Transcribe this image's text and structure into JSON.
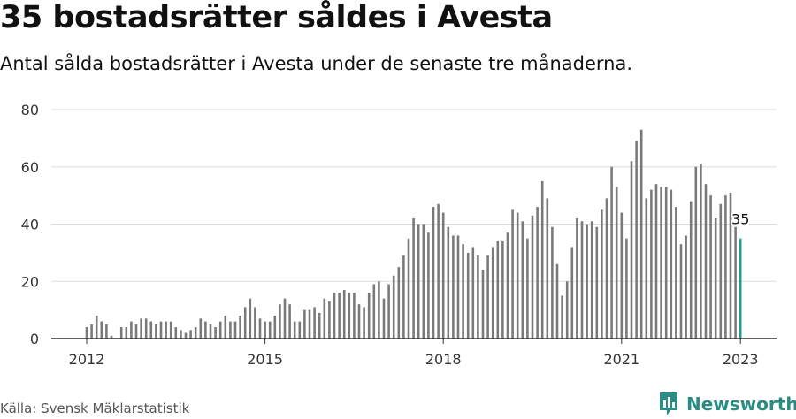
{
  "title": "35 bostadsrätter såldes i Avesta",
  "subtitle": "Antal sålda bostadsrätter i Avesta under de senaste tre månaderna.",
  "source": "Källa: Svensk Mäklarstatistik",
  "brand": "Newsworthy",
  "colors": {
    "bar": "#7a7a7a",
    "highlight": "#1e9e93",
    "grid": "#dddddd",
    "axis": "#333333",
    "brand": "#2a8c82"
  },
  "chart_data": {
    "type": "bar",
    "xlabel": "",
    "ylabel": "",
    "ylim": [
      0,
      80
    ],
    "yticks": [
      0,
      20,
      40,
      60,
      80
    ],
    "xticks": [
      {
        "label": "2012",
        "index": 0
      },
      {
        "label": "2015",
        "index": 36
      },
      {
        "label": "2018",
        "index": 72
      },
      {
        "label": "2021",
        "index": 108
      },
      {
        "label": "2023",
        "index": 132
      }
    ],
    "start_period": "2012-01",
    "frequency": "monthly",
    "highlight_label": "35",
    "values": [
      4,
      5,
      8,
      6,
      5,
      1,
      0,
      4,
      4,
      6,
      5,
      7,
      7,
      6,
      5,
      6,
      6,
      6,
      4,
      3,
      2,
      3,
      4,
      7,
      6,
      5,
      4,
      6,
      8,
      6,
      6,
      8,
      11,
      14,
      11,
      7,
      6,
      6,
      8,
      12,
      14,
      12,
      6,
      6,
      10,
      10,
      11,
      9,
      14,
      13,
      16,
      16,
      17,
      16,
      16,
      12,
      11,
      16,
      19,
      20,
      14,
      19,
      22,
      25,
      29,
      35,
      42,
      40,
      40,
      37,
      46,
      47,
      44,
      39,
      36,
      36,
      33,
      30,
      32,
      29,
      24,
      29,
      32,
      34,
      34,
      37,
      45,
      44,
      41,
      35,
      43,
      46,
      55,
      49,
      39,
      26,
      15,
      20,
      32,
      42,
      41,
      40,
      41,
      39,
      45,
      49,
      60,
      53,
      44,
      35,
      62,
      69,
      73,
      49,
      52,
      54,
      53,
      53,
      52,
      46,
      33,
      36,
      48,
      60,
      61,
      54,
      50,
      42,
      47,
      50,
      51,
      39,
      35
    ]
  }
}
